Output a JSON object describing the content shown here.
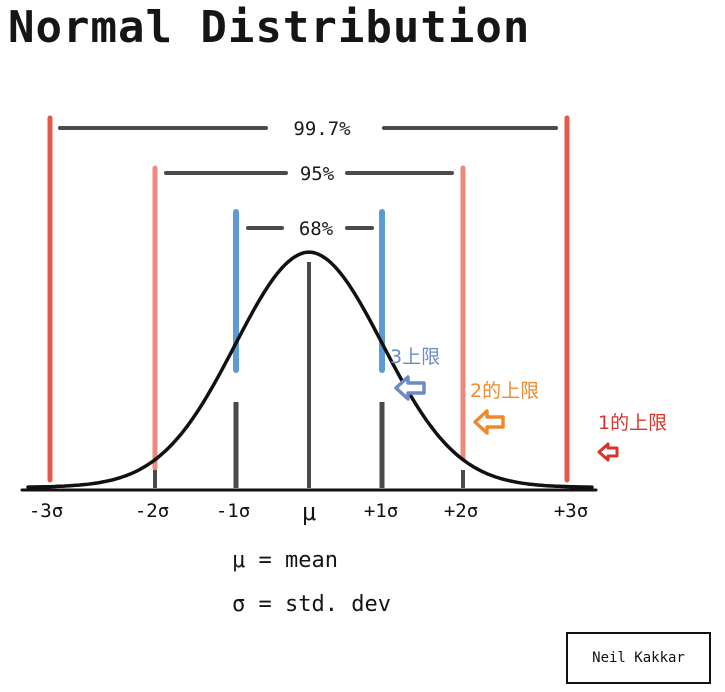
{
  "title": "Normal Distribution",
  "colors": {
    "sigma3": "#e4574b",
    "sigma2": "#ee8a7a",
    "sigma1": "#5b9bd6",
    "dark": "#4a4a4a",
    "curve": "#111111",
    "note_blue": "#6a8cc4",
    "note_orange": "#ef8a2c",
    "note_red": "#d9342a"
  },
  "ranges": [
    {
      "label": "99.7%",
      "sigma": 3
    },
    {
      "label": "95%",
      "sigma": 2
    },
    {
      "label": "68%",
      "sigma": 1
    }
  ],
  "x_ticks": [
    "-3σ",
    "-2σ",
    "-1σ",
    "μ",
    "+1σ",
    "+2σ",
    "+3σ"
  ],
  "legend": {
    "mean": "μ = mean",
    "std": "σ = std. dev"
  },
  "notes": [
    {
      "text": "3上限",
      "color": "note_blue",
      "arrow": "left-arrow-icon"
    },
    {
      "text": "2的上限",
      "color": "note_orange",
      "arrow": "left-arrow-icon"
    },
    {
      "text": "1的上限",
      "color": "note_red",
      "arrow": "left-arrow-icon"
    }
  ],
  "credit": "Neil Kakkar"
}
